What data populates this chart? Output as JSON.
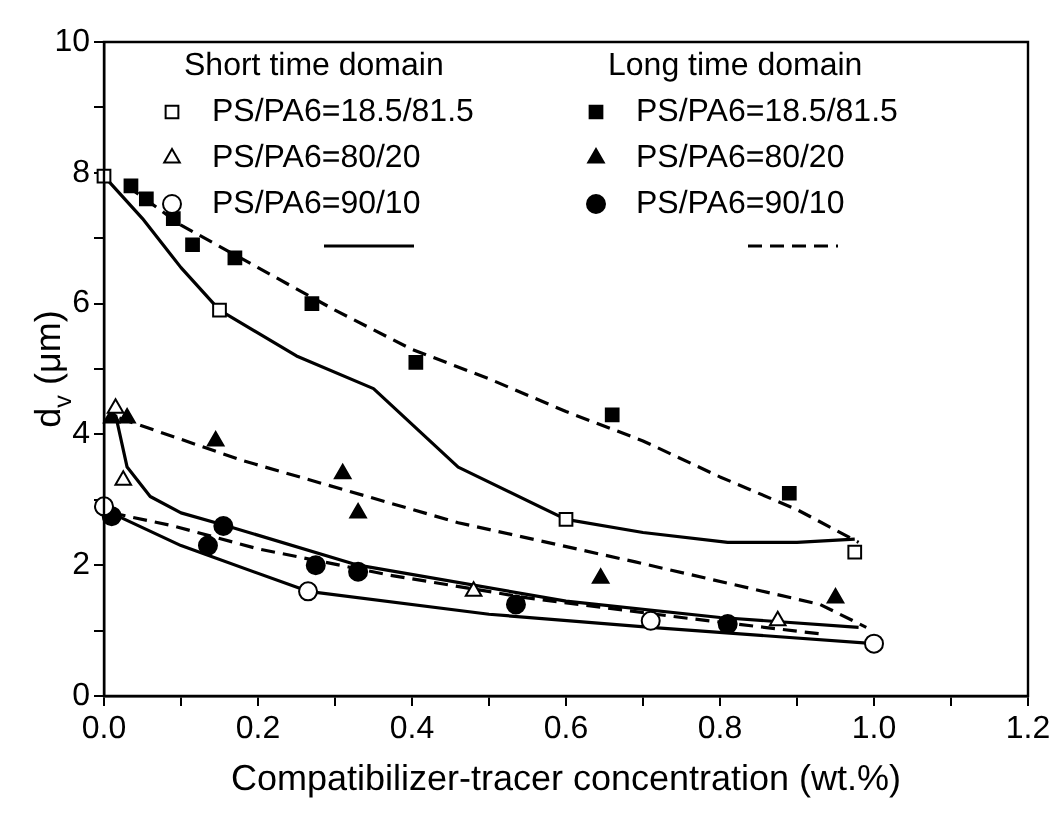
{
  "chart_data": {
    "type": "scatter",
    "xlabel": "Compatibilizer-tracer concentration (wt.%)",
    "ylabel": "d$_{v}$ (μm)",
    "annotations": [
      "Short time domain",
      "Long time domain"
    ],
    "xlim": [
      0,
      1.2
    ],
    "ylim": [
      0,
      10
    ],
    "xticks": [
      {
        "value": 0,
        "label": "0.0"
      },
      {
        "value": 0.1,
        "label": null
      },
      {
        "value": 0.2,
        "label": "0.2"
      },
      {
        "value": 0.3,
        "label": null
      },
      {
        "value": 0.4,
        "label": "0.4"
      },
      {
        "value": 0.5,
        "label": null
      },
      {
        "value": 0.6,
        "label": "0.6"
      },
      {
        "value": 0.7,
        "label": null
      },
      {
        "value": 0.8,
        "label": "0.8"
      },
      {
        "value": 0.9,
        "label": null
      },
      {
        "value": 1,
        "label": "1.0"
      },
      {
        "value": 1.1,
        "label": null
      },
      {
        "value": 1.2,
        "label": "1.2"
      }
    ],
    "yticks": [
      0,
      {
        "value": 1,
        "label": null
      },
      2,
      {
        "value": 3,
        "label": null
      },
      4,
      {
        "value": 5,
        "label": null
      },
      6,
      {
        "value": 7,
        "label": null
      },
      8,
      {
        "value": 9,
        "label": null
      },
      10
    ],
    "legend": "top",
    "grid": false,
    "series": [
      {
        "name": "PS/PA6=18.5/81.5",
        "marker": "square",
        "color": "#ffffff",
        "x": [
          0,
          0.15,
          0.6,
          0.975
        ],
        "values": [
          7.95,
          5.9,
          2.7,
          2.2
        ]
      },
      {
        "name": "PS/PA6=80/20",
        "marker": "triangle",
        "color": "#ffffff",
        "x": [
          0.015,
          0.025,
          0.48,
          0.875
        ],
        "values": [
          4.4,
          3.3,
          1.6,
          1.15
        ]
      },
      {
        "name": "PS/PA6=90/10",
        "marker": "circle",
        "color": "#ffffff",
        "x": [
          0,
          0.265,
          0.71,
          1.0
        ],
        "values": [
          2.9,
          1.6,
          1.15,
          0.8
        ]
      },
      {
        "name": "PS/PA6=18.5/81.5",
        "marker": "square",
        "color": "#000000",
        "x": [
          0.035,
          0.055,
          0.09,
          0.115,
          0.17,
          0.27,
          0.405,
          0.66,
          0.89
        ],
        "values": [
          7.8,
          7.6,
          7.3,
          6.9,
          6.7,
          6.0,
          5.1,
          4.3,
          3.1
        ]
      },
      {
        "name": "PS/PA6=80/20",
        "marker": "triangle",
        "color": "#000000",
        "x": [
          0.01,
          0.03,
          0.145,
          0.31,
          0.33,
          0.645,
          0.95
        ],
        "values": [
          4.25,
          4.25,
          3.9,
          3.4,
          2.8,
          1.8,
          1.5
        ]
      },
      {
        "name": "PS/PA6=90/10",
        "marker": "circle",
        "color": "#000000",
        "x": [
          0.01,
          0.135,
          0.155,
          0.275,
          0.33,
          0.535,
          0.81
        ],
        "values": [
          2.75,
          2.3,
          2.6,
          2.0,
          1.9,
          1.4,
          1.1
        ]
      },
      {
        "type": "line",
        "marker": "none",
        "line_style": "solid",
        "color": "#000000",
        "x": [
          0,
          0.05,
          0.1,
          0.15,
          0.25,
          0.35,
          0.46,
          0.6,
          0.7,
          0.81,
          0.9,
          0.975
        ],
        "values": [
          7.95,
          7.3,
          6.55,
          5.9,
          5.2,
          4.7,
          3.5,
          2.7,
          2.5,
          2.35,
          2.35,
          2.4
        ]
      },
      {
        "type": "line",
        "marker": "none",
        "line_style": "solid",
        "color": "#000000",
        "x": [
          0.015,
          0.03,
          0.06,
          0.1,
          0.16,
          0.33,
          0.6,
          0.8,
          0.98
        ],
        "values": [
          4.3,
          3.5,
          3.05,
          2.8,
          2.6,
          2.0,
          1.45,
          1.2,
          1.05
        ]
      },
      {
        "type": "line",
        "marker": "none",
        "line_style": "solid",
        "color": "#000000",
        "x": [
          0,
          0.1,
          0.265,
          0.5,
          0.71,
          1.0
        ],
        "values": [
          2.85,
          2.3,
          1.6,
          1.25,
          1.05,
          0.8
        ]
      },
      {
        "type": "line",
        "marker": "none",
        "line_style": "dashed",
        "color": "#000000",
        "x": [
          0.03,
          0.1,
          0.2,
          0.3,
          0.4,
          0.5,
          0.6,
          0.7,
          0.8,
          0.9,
          0.98
        ],
        "values": [
          7.8,
          7.2,
          6.55,
          5.9,
          5.3,
          4.85,
          4.35,
          3.9,
          3.35,
          2.85,
          2.35
        ]
      },
      {
        "type": "line",
        "marker": "none",
        "line_style": "dashed",
        "color": "#000000",
        "x": [
          0.02,
          0.18,
          0.46,
          0.69,
          0.93,
          0.99
        ],
        "values": [
          4.25,
          3.6,
          2.65,
          2.05,
          1.4,
          1.05
        ]
      },
      {
        "type": "line",
        "marker": "none",
        "line_style": "dashed",
        "color": "#000000",
        "x": [
          0.01,
          0.09,
          0.2,
          0.37,
          0.55,
          0.75,
          0.93
        ],
        "values": [
          2.8,
          2.6,
          2.25,
          1.85,
          1.5,
          1.2,
          0.95
        ]
      }
    ]
  }
}
